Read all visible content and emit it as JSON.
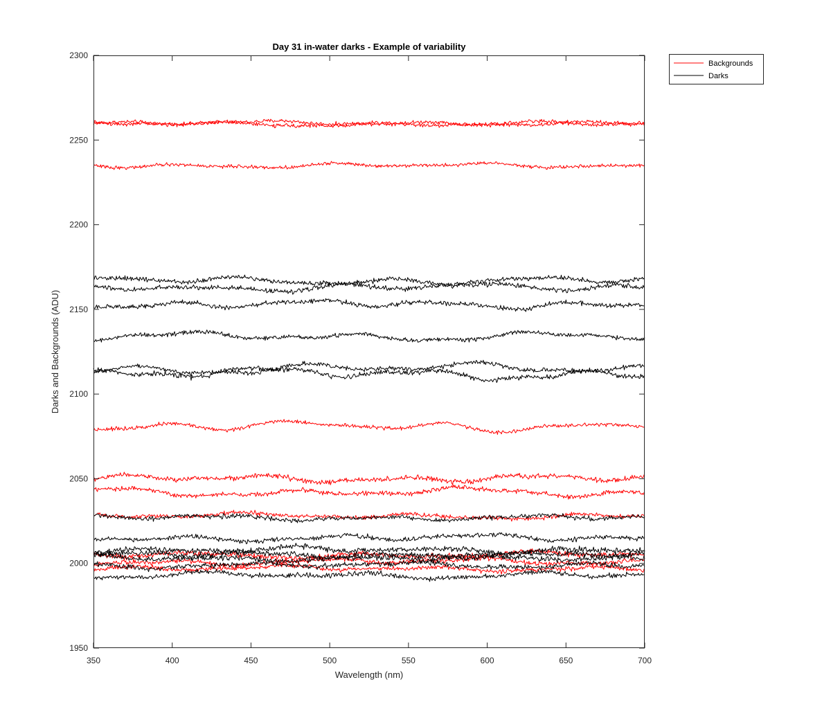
{
  "chart_data": {
    "type": "line",
    "title": "Day 31 in-water darks - Example of variability",
    "xlabel": "Wavelength (nm)",
    "ylabel": "Darks and Backgrounds (ADU)",
    "xlim": [
      350,
      700
    ],
    "ylim": [
      1950,
      2300
    ],
    "x_ticks": [
      350,
      400,
      450,
      500,
      550,
      600,
      650,
      700
    ],
    "y_ticks": [
      1950,
      2000,
      2050,
      2100,
      2150,
      2200,
      2250,
      2300
    ],
    "grid": false,
    "legend": {
      "placement": "outside-top-right",
      "entries": [
        {
          "label": "Backgrounds",
          "color": "#ff0000"
        },
        {
          "label": "Darks",
          "color": "#000000"
        }
      ]
    },
    "series": [
      {
        "group": "Backgrounds",
        "color": "#ff0000",
        "level": 2260,
        "waviness": 1.2,
        "noise": 1.0
      },
      {
        "group": "Backgrounds",
        "color": "#ff0000",
        "level": 2259.5,
        "waviness": 1.4,
        "noise": 1.0
      },
      {
        "group": "Backgrounds",
        "color": "#ff0000",
        "level": 2235,
        "waviness": 1.4,
        "noise": 0.9
      },
      {
        "group": "Backgrounds",
        "color": "#ff0000",
        "level": 2081,
        "waviness": 3.0,
        "noise": 1.0
      },
      {
        "group": "Backgrounds",
        "color": "#ff0000",
        "level": 2050,
        "waviness": 2.2,
        "noise": 1.3
      },
      {
        "group": "Backgrounds",
        "color": "#ff0000",
        "level": 2042,
        "waviness": 2.5,
        "noise": 1.2
      },
      {
        "group": "Backgrounds",
        "color": "#ff0000",
        "level": 2028,
        "waviness": 1.6,
        "noise": 1.1
      },
      {
        "group": "Backgrounds",
        "color": "#ff0000",
        "level": 2005,
        "waviness": 1.8,
        "noise": 1.4
      },
      {
        "group": "Backgrounds",
        "color": "#ff0000",
        "level": 2001,
        "waviness": 2.0,
        "noise": 1.3
      },
      {
        "group": "Backgrounds",
        "color": "#ff0000",
        "level": 1997,
        "waviness": 1.6,
        "noise": 1.2
      },
      {
        "group": "Darks",
        "color": "#000000",
        "level": 2167,
        "waviness": 2.2,
        "noise": 1.2
      },
      {
        "group": "Darks",
        "color": "#000000",
        "level": 2163,
        "waviness": 2.2,
        "noise": 1.2
      },
      {
        "group": "Darks",
        "color": "#000000",
        "level": 2153,
        "waviness": 2.4,
        "noise": 1.2
      },
      {
        "group": "Darks",
        "color": "#000000",
        "level": 2134,
        "waviness": 2.6,
        "noise": 1.1
      },
      {
        "group": "Darks",
        "color": "#000000",
        "level": 2115,
        "waviness": 3.2,
        "noise": 1.2
      },
      {
        "group": "Darks",
        "color": "#000000",
        "level": 2112,
        "waviness": 3.4,
        "noise": 1.2
      },
      {
        "group": "Darks",
        "color": "#000000",
        "level": 2027,
        "waviness": 1.6,
        "noise": 1.2
      },
      {
        "group": "Darks",
        "color": "#000000",
        "level": 2015,
        "waviness": 2.0,
        "noise": 1.2
      },
      {
        "group": "Darks",
        "color": "#000000",
        "level": 2008,
        "waviness": 1.8,
        "noise": 1.5
      },
      {
        "group": "Darks",
        "color": "#000000",
        "level": 2005,
        "waviness": 1.8,
        "noise": 1.5
      },
      {
        "group": "Darks",
        "color": "#000000",
        "level": 2003,
        "waviness": 1.6,
        "noise": 1.5
      },
      {
        "group": "Darks",
        "color": "#000000",
        "level": 1999,
        "waviness": 1.8,
        "noise": 1.3
      },
      {
        "group": "Darks",
        "color": "#000000",
        "level": 1993,
        "waviness": 2.0,
        "noise": 1.2
      }
    ]
  }
}
